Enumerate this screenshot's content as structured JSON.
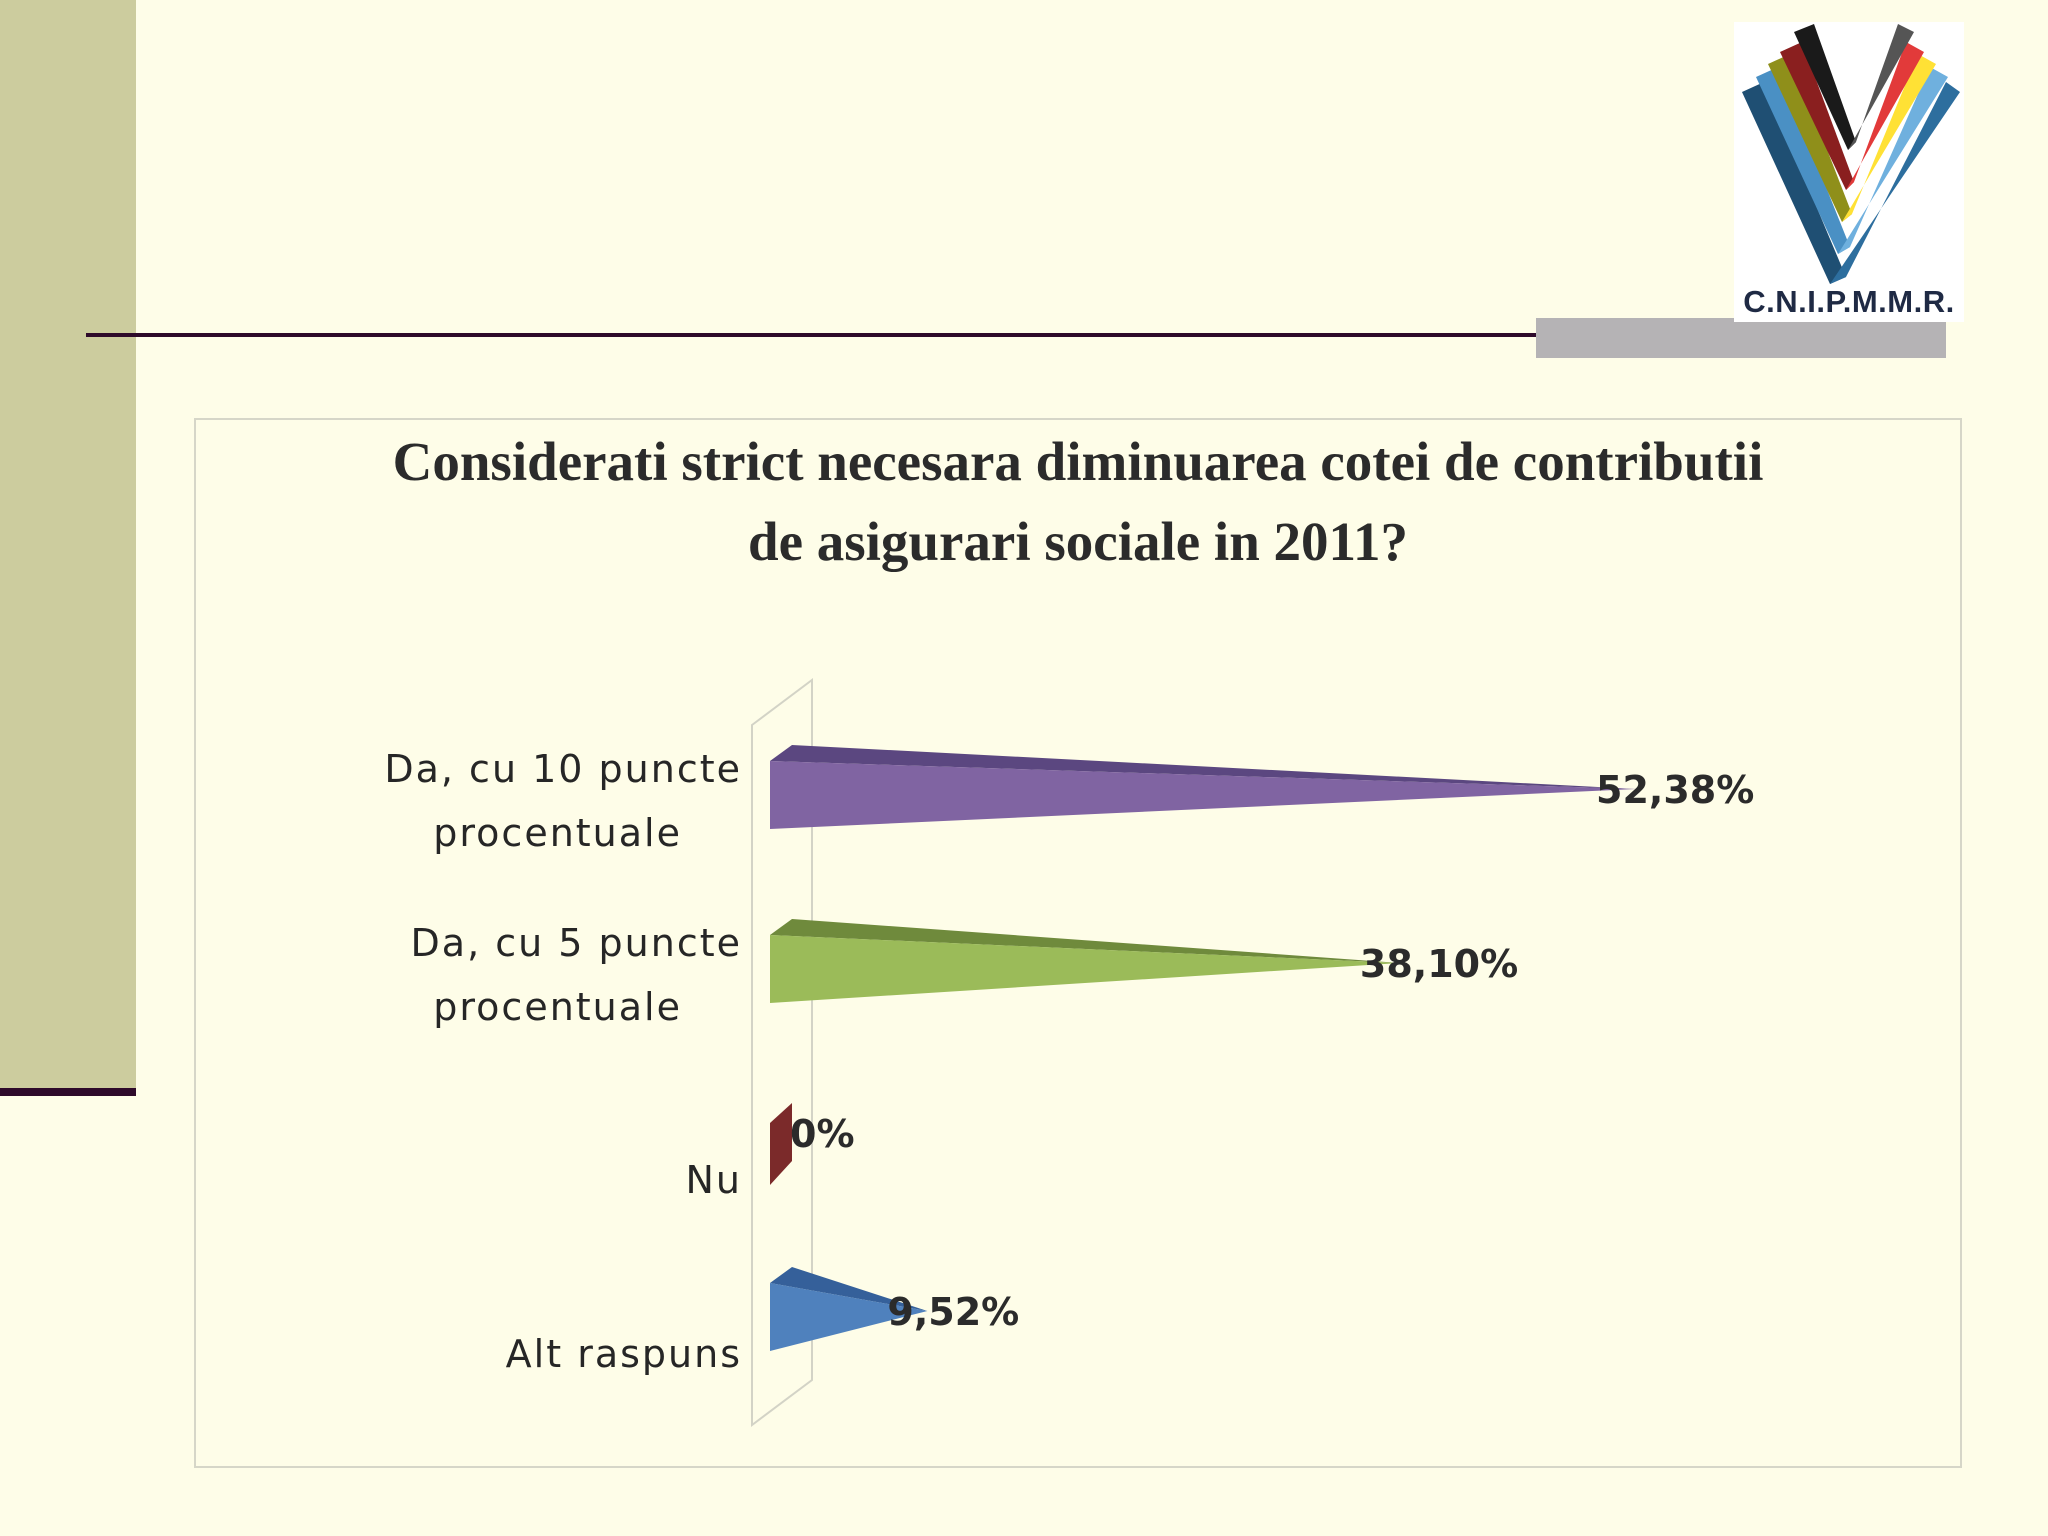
{
  "logo": {
    "text": "C.N.I.P.M.M.R."
  },
  "chart_data": {
    "type": "bar",
    "orientation": "horizontal",
    "title_lines": [
      "Considerati strict necesara diminuarea cotei de contributii",
      "de asigurari sociale in 2011?"
    ],
    "categories": [
      [
        "Da, cu 10 puncte",
        "procentuale"
      ],
      [
        "Da, cu 5 puncte",
        "procentuale"
      ],
      [
        "Nu"
      ],
      [
        "Alt raspuns"
      ]
    ],
    "values": [
      52.38,
      38.1,
      0,
      9.52
    ],
    "value_labels": [
      "52,38%",
      "38,10%",
      "0%",
      "9,52%"
    ],
    "unit": "%",
    "xlim": [
      0,
      60
    ],
    "colors": [
      "#8064a2",
      "#9bbb59",
      "#7b2a2a",
      "#4f81bd"
    ],
    "dark_colors": [
      "#5b4780",
      "#6f8a3c",
      "#4d1515",
      "#35609a"
    ],
    "grid": false,
    "legend": "none",
    "style": "3d-cone"
  }
}
